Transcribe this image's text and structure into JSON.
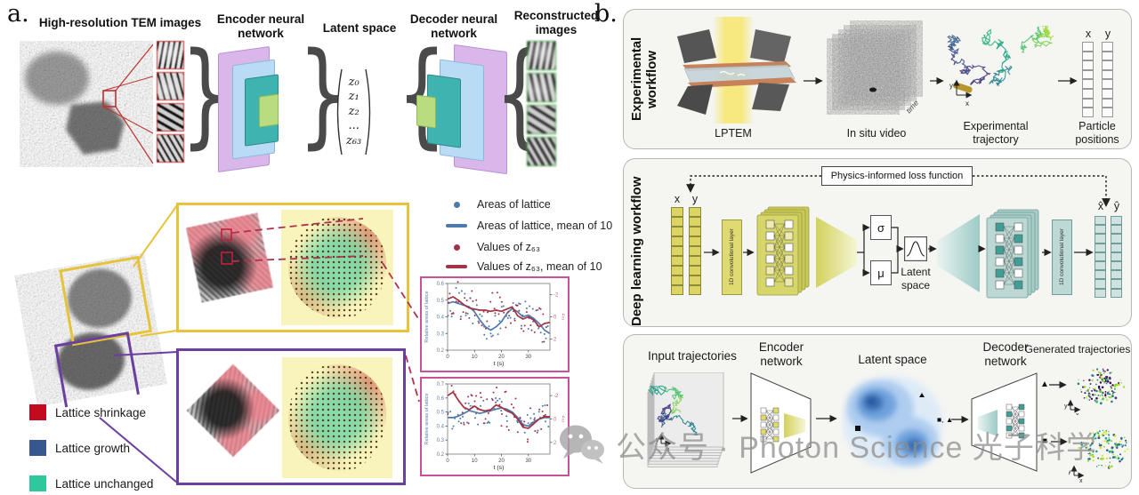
{
  "panel_a": {
    "label": "a.",
    "tem_title": "High-resolution TEM images",
    "encoder_title": "Encoder neural network",
    "latent_title": "Latent space",
    "latent_vector": [
      "z₀",
      "z₁",
      "z₂",
      "...",
      "z₆₃"
    ],
    "decoder_title": "Decoder neural network",
    "reconstructed_title": "Reconstructed images",
    "plot_legend": [
      {
        "label": "Areas of lattice",
        "marker": "dot",
        "color": "#4e7aab"
      },
      {
        "label": "Areas of lattice, mean of 10",
        "marker": "line",
        "color": "#4e7aab"
      },
      {
        "label": "Values of z₆₃",
        "marker": "dot",
        "color": "#a33344"
      },
      {
        "label": "Values of z₆₃, mean of 10",
        "marker": "line",
        "color": "#a33344"
      }
    ],
    "lattice_legend": [
      {
        "label": "Lattice shrinkage",
        "color": "#c40a1e"
      },
      {
        "label": "Lattice growth",
        "color": "#37588e"
      },
      {
        "label": "Lattice unchanged",
        "color": "#2ec79e"
      }
    ]
  },
  "panel_b": {
    "label": "b.",
    "experimental": {
      "title": "Experimental workflow",
      "lptem_label": "LPTEM",
      "video_label": "In situ video",
      "time_label": "time",
      "trajectory_label": "Experimental trajectory",
      "positions_label": "Particle positions",
      "x_header": "x",
      "y_header": "y"
    },
    "deep_learning": {
      "title": "Deep learning workflow",
      "loss_label": "Physics-informed loss function",
      "x_header": "x",
      "y_header": "y",
      "conv_encoder_label": "1D convolutional layer",
      "sigma": "σ",
      "mu": "μ",
      "latent_label": "Latent space",
      "conv_decoder_label": "1D convolutional layer",
      "xhat_header": "x̂",
      "yhat_header": "ŷ"
    },
    "generative": {
      "input_label": "Input trajectories",
      "encoder_label": "Encoder network",
      "latent_label": "Latent space",
      "decoder_label": "Decoder network",
      "generated_label": "Generated trajectories",
      "marker_pair": "■, ▲",
      "marker_triangle": "▲",
      "marker_square": "■",
      "axis_y": "y",
      "axis_x": "x"
    }
  },
  "watermark": {
    "text": "公众号 · Photon Science 光子科学",
    "icon": "wechat-icon"
  },
  "chart_data": [
    {
      "type": "scatter",
      "xlabel": "t (s)",
      "ylabel_left": "Relative areas of lattice",
      "ylabel_right": "z₆₃",
      "xlim": [
        0,
        38
      ],
      "ylim_left": [
        0.2,
        0.6
      ],
      "ylim_right": [
        -3,
        3
      ],
      "right_axis_inverted": true,
      "xticks": [
        0,
        10,
        20,
        30
      ],
      "yticks_left": [
        0.2,
        0.3,
        0.4,
        0.5,
        0.6
      ],
      "yticks_right": [
        -2,
        0,
        2
      ],
      "series": [
        {
          "name": "Areas of lattice, mean of 10",
          "axis": "left",
          "color": "#4e7aab",
          "x": [
            0,
            2,
            4,
            6,
            8,
            10,
            12,
            14,
            16,
            18,
            20,
            22,
            24,
            26,
            28,
            30,
            32,
            34,
            36,
            38
          ],
          "y": [
            0.48,
            0.49,
            0.48,
            0.47,
            0.46,
            0.43,
            0.38,
            0.34,
            0.32,
            0.34,
            0.37,
            0.42,
            0.45,
            0.43,
            0.4,
            0.41,
            0.39,
            0.36,
            0.32,
            0.3
          ]
        },
        {
          "name": "Values of z₆₃, mean of 10",
          "axis": "right",
          "color": "#a33344",
          "x": [
            0,
            2,
            4,
            6,
            8,
            10,
            12,
            14,
            16,
            18,
            20,
            22,
            24,
            26,
            28,
            30,
            32,
            34,
            36,
            38
          ],
          "y": [
            -1.6,
            -1.8,
            -1.5,
            -1.1,
            -0.8,
            -0.7,
            -0.6,
            -0.6,
            -0.5,
            -0.6,
            -0.5,
            -0.7,
            -0.9,
            -0.1,
            0.2,
            0.0,
            0.3,
            0.9,
            0.6,
            0.5
          ]
        }
      ],
      "scatter_jitter": {
        "left": 0.045,
        "right": 0.85
      }
    },
    {
      "type": "scatter",
      "xlabel": "t (s)",
      "ylabel_left": "Relative areas of lattice",
      "ylabel_right": "z₆₃",
      "xlim": [
        0,
        38
      ],
      "ylim_left": [
        0.2,
        0.7
      ],
      "ylim_right": [
        -3,
        3
      ],
      "right_axis_inverted": true,
      "xticks": [
        0,
        10,
        20,
        30
      ],
      "yticks_left": [
        0.2,
        0.3,
        0.4,
        0.5,
        0.6,
        0.7
      ],
      "yticks_right": [
        -2,
        0,
        2
      ],
      "series": [
        {
          "name": "Areas of lattice, mean of 10",
          "axis": "left",
          "color": "#4e7aab",
          "x": [
            0,
            2,
            4,
            6,
            8,
            10,
            12,
            14,
            16,
            18,
            20,
            22,
            24,
            26,
            28,
            30,
            32,
            34,
            36,
            38
          ],
          "y": [
            0.46,
            0.46,
            0.47,
            0.49,
            0.51,
            0.5,
            0.49,
            0.5,
            0.51,
            0.52,
            0.53,
            0.52,
            0.5,
            0.46,
            0.41,
            0.4,
            0.43,
            0.45,
            0.46,
            0.46
          ]
        },
        {
          "name": "Values of z₆₃, mean of 10",
          "axis": "right",
          "color": "#a33344",
          "x": [
            0,
            2,
            4,
            6,
            8,
            10,
            12,
            14,
            16,
            18,
            20,
            22,
            24,
            26,
            28,
            30,
            32,
            34,
            36,
            38
          ],
          "y": [
            -2.0,
            -2.3,
            -1.6,
            -1.0,
            -0.8,
            -1.1,
            -0.8,
            -0.7,
            -0.8,
            -1.2,
            -1.0,
            -0.7,
            -0.5,
            0.0,
            0.7,
            0.8,
            0.4,
            0.0,
            -0.2,
            -0.2
          ]
        }
      ],
      "scatter_jitter": {
        "left": 0.045,
        "right": 0.85
      }
    }
  ]
}
